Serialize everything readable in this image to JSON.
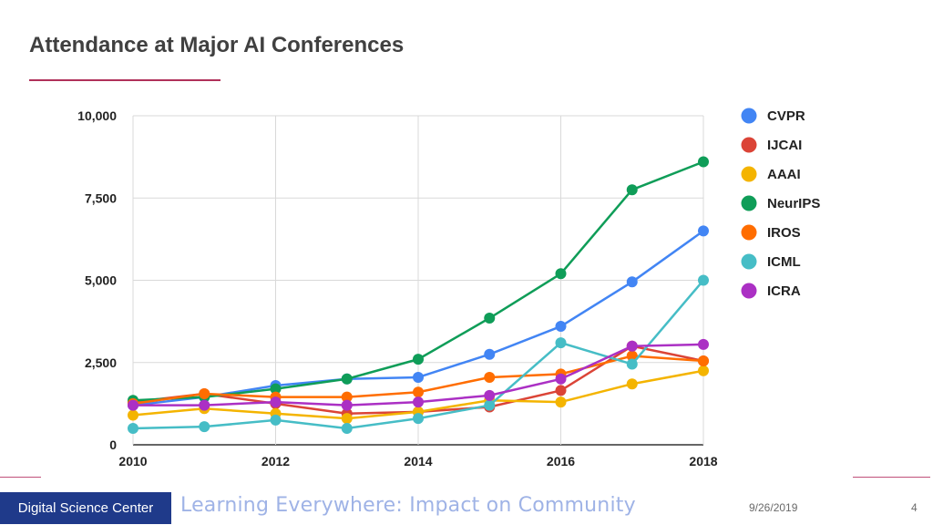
{
  "slide": {
    "title": "Attendance at Major AI Conferences",
    "footer": {
      "brand": "Digital Science Center",
      "tagline": "Learning Everywhere: Impact on Community",
      "date": "9/26/2019",
      "page": "4"
    }
  },
  "chart_data": {
    "type": "line",
    "title": "",
    "xlabel": "",
    "ylabel": "",
    "x": [
      2010,
      2011,
      2012,
      2013,
      2014,
      2015,
      2016,
      2017,
      2018
    ],
    "x_ticks": [
      "2010",
      "2012",
      "2014",
      "2016",
      "2018"
    ],
    "x_tick_values": [
      2010,
      2012,
      2014,
      2016,
      2018
    ],
    "y_ticks": [
      "0",
      "2,500",
      "5,000",
      "7,500",
      "10,000"
    ],
    "y_tick_values": [
      0,
      2500,
      5000,
      7500,
      10000
    ],
    "ylim": [
      0,
      10000
    ],
    "grid": true,
    "legend_position": "right",
    "series": [
      {
        "name": "CVPR",
        "color": "#4285f4",
        "values": [
          1200,
          1450,
          1800,
          2000,
          2050,
          2750,
          3600,
          4950,
          6500
        ]
      },
      {
        "name": "IJCAI",
        "color": "#db4437",
        "values": [
          1300,
          1550,
          1250,
          950,
          1000,
          1150,
          1650,
          3000,
          2550
        ]
      },
      {
        "name": "AAAI",
        "color": "#f4b400",
        "values": [
          900,
          1100,
          950,
          800,
          1000,
          1350,
          1300,
          1850,
          2250
        ]
      },
      {
        "name": "NeurIPS",
        "color": "#0f9d58",
        "values": [
          1350,
          1450,
          1700,
          2000,
          2600,
          3850,
          5200,
          7750,
          8600
        ]
      },
      {
        "name": "IROS",
        "color": "#ff6d00",
        "values": [
          1250,
          1550,
          1450,
          1450,
          1600,
          2050,
          2150,
          2700,
          2550
        ]
      },
      {
        "name": "ICML",
        "color": "#46bdc6",
        "values": [
          500,
          550,
          750,
          500,
          800,
          1200,
          3100,
          2450,
          5000
        ]
      },
      {
        "name": "ICRA",
        "color": "#ab30c4",
        "values": [
          1200,
          1200,
          1300,
          1200,
          1300,
          1500,
          2000,
          3000,
          3050
        ]
      }
    ]
  }
}
